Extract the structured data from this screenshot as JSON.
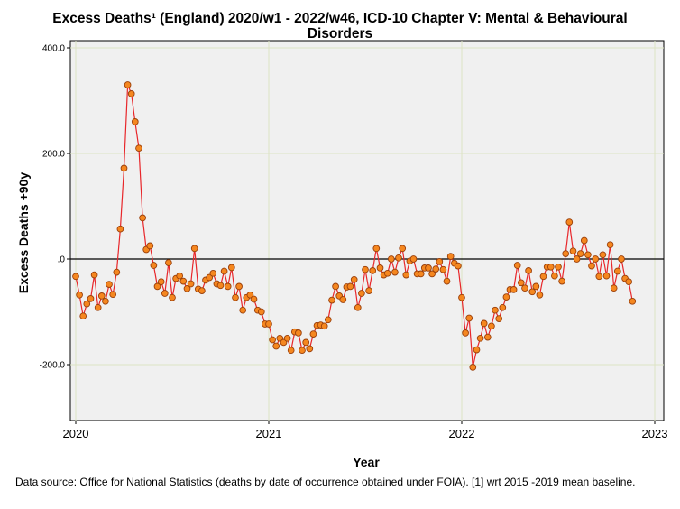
{
  "title_line1": "Excess Deaths¹ (England) 2020/w1 - 2022/w46, ICD-10 Chapter V: Mental & Behavioural",
  "title_line2": "Disorders",
  "source_note": "Data source: Office for National Statistics (deaths by date of occurrence obtained under FOIA). [1] wrt 2015 -2019 mean baseline.",
  "colors": {
    "line": "#e8262a",
    "marker_fill": "#f5871f",
    "marker_stroke": "#9a3f0a",
    "plot_bg": "#f0f0f0",
    "grid": "#dde3c4"
  },
  "chart_data": {
    "type": "line",
    "title": "Excess Deaths¹ (England) 2020/w1 - 2022/w46, ICD-10 Chapter V: Mental & Behavioural Disorders",
    "xlabel": "Year",
    "ylabel": "Excess Deaths +90y",
    "xlim": [
      2020,
      2023
    ],
    "ylim": [
      -300,
      410
    ],
    "x_ticks": [
      2020,
      2021,
      2022,
      2023
    ],
    "x_tick_labels": [
      "2020",
      "2021",
      "2022",
      "2023"
    ],
    "y_ticks": [
      400,
      200,
      0,
      -200
    ],
    "y_tick_labels": [
      "400.0",
      "200.0",
      ".0",
      "-200.0"
    ],
    "grid": true,
    "reference_line": 0,
    "x_start": 2020.0,
    "x_step_weeks": 1,
    "series": [
      {
        "name": "Excess deaths",
        "values": [
          -33,
          -68,
          -108,
          -85,
          -75,
          -30,
          -92,
          -70,
          -80,
          -48,
          -67,
          -25,
          57,
          172,
          330,
          313,
          260,
          210,
          78,
          18,
          25,
          -12,
          -52,
          -43,
          -65,
          -7,
          -73,
          -37,
          -32,
          -42,
          -56,
          -47,
          20,
          -57,
          -60,
          -40,
          -35,
          -27,
          -47,
          -50,
          -23,
          -52,
          -16,
          -73,
          -52,
          -97,
          -73,
          -68,
          -76,
          -97,
          -100,
          -123,
          -123,
          -153,
          -165,
          -150,
          -158,
          -150,
          -173,
          -138,
          -140,
          -173,
          -158,
          -170,
          -142,
          -126,
          -125,
          -127,
          -115,
          -78,
          -52,
          -70,
          -77,
          -53,
          -52,
          -39,
          -92,
          -65,
          -20,
          -60,
          -22,
          20,
          -17,
          -30,
          -27,
          0,
          -25,
          2,
          20,
          -30,
          -4,
          0,
          -28,
          -28,
          -17,
          -17,
          -28,
          -19,
          -5,
          -20,
          -42,
          5,
          -8,
          -13,
          -73,
          -140,
          -112,
          -205,
          -172,
          -150,
          -122,
          -148,
          -127,
          -97,
          -113,
          -92,
          -72,
          -58,
          -58,
          -12,
          -45,
          -55,
          -22,
          -62,
          -52,
          -68,
          -33,
          -15,
          -15,
          -32,
          -15,
          -42,
          10,
          70,
          15,
          0,
          10,
          35,
          8,
          -13,
          0,
          -33,
          8,
          -32,
          27,
          -55,
          -23,
          0,
          -37,
          -43,
          -80
        ]
      }
    ]
  }
}
